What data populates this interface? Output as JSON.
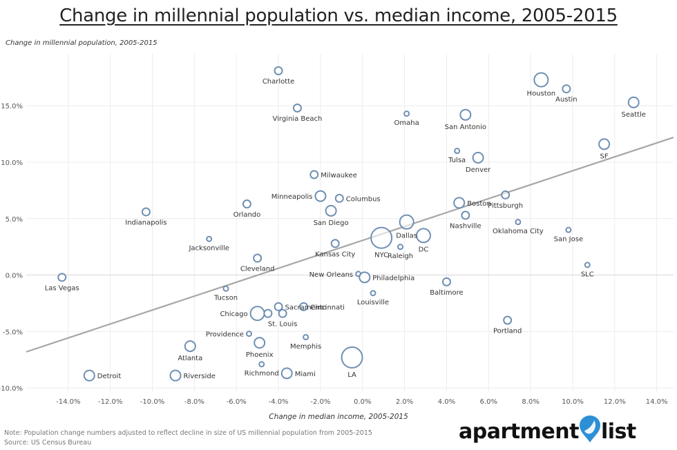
{
  "title": "Change in millennial population vs. median income, 2005-2015",
  "note_lines": [
    "Note: Population change numbers adjusted to reflect decline in size of US millennial population from 2005-2015",
    "Source: US Census Bureau"
  ],
  "logo": {
    "word_left": "apartment",
    "word_right": "list",
    "pin_color": "#2d8fd5",
    "icon": "map-pin-icon"
  },
  "colors": {
    "marker": "#6f8fb3",
    "trend": "#a6a6a6",
    "grid": "#ececec",
    "zero_line": "#d6d6d6"
  },
  "chart_data": {
    "type": "scatter",
    "xlabel": "Change in median income, 2005-2015",
    "ylabel": "Change in millennial population, 2005-2015",
    "xlim": [
      -16,
      14.8
    ],
    "ylim": [
      -10.3,
      19.6
    ],
    "x_ticks": [
      -14,
      -12,
      -10,
      -8,
      -6,
      -4,
      -2,
      0,
      2,
      4,
      6,
      8,
      10,
      12,
      14
    ],
    "x_tick_labels": [
      "-14.0%",
      "-12.0%",
      "-10.0%",
      "-8.0%",
      "-6.0%",
      "-4.0%",
      "-2.0%",
      "0.0%",
      "2.0%",
      "4.0%",
      "6.0%",
      "8.0%",
      "10.0%",
      "12.0%",
      "14.0%"
    ],
    "y_ticks": [
      -10,
      -5,
      0,
      5,
      10,
      15
    ],
    "y_tick_labels": [
      "-10.0%",
      "-5.0%",
      "0.0%",
      "5.0%",
      "10.0%",
      "15.0%"
    ],
    "grid": true,
    "trendline": {
      "x": [
        -16,
        14.8
      ],
      "y": [
        -6.8,
        12.2
      ]
    },
    "points": [
      {
        "label": "Charlotte",
        "x": -4.0,
        "y": 18.1,
        "size": "small",
        "label_pos": "below"
      },
      {
        "label": "Virginia Beach",
        "x": -3.1,
        "y": 14.8,
        "size": "small",
        "label_pos": "below"
      },
      {
        "label": "Omaha",
        "x": 2.1,
        "y": 14.3,
        "size": "xsmall",
        "label_pos": "below"
      },
      {
        "label": "San Antonio",
        "x": 4.9,
        "y": 14.2,
        "size": "medium",
        "label_pos": "below"
      },
      {
        "label": "Houston",
        "x": 8.5,
        "y": 17.3,
        "size": "large",
        "label_pos": "below"
      },
      {
        "label": "Austin",
        "x": 9.7,
        "y": 16.5,
        "size": "small",
        "label_pos": "below"
      },
      {
        "label": "Seattle",
        "x": 12.9,
        "y": 15.3,
        "size": "medium",
        "label_pos": "below"
      },
      {
        "label": "Tulsa",
        "x": 4.5,
        "y": 11.0,
        "size": "xsmall",
        "label_pos": "below"
      },
      {
        "label": "Denver",
        "x": 5.5,
        "y": 10.4,
        "size": "medium",
        "label_pos": "below"
      },
      {
        "label": "SF",
        "x": 11.5,
        "y": 11.6,
        "size": "medium",
        "label_pos": "below"
      },
      {
        "label": "Milwaukee",
        "x": -2.3,
        "y": 8.9,
        "size": "small",
        "label_pos": "right"
      },
      {
        "label": "Minneapolis",
        "x": -2.0,
        "y": 7.0,
        "size": "medium",
        "label_pos": "left"
      },
      {
        "label": "Columbus",
        "x": -1.1,
        "y": 6.8,
        "size": "small",
        "label_pos": "right"
      },
      {
        "label": "San Diego",
        "x": -1.5,
        "y": 5.7,
        "size": "medium",
        "label_pos": "below"
      },
      {
        "label": "Orlando",
        "x": -5.5,
        "y": 6.3,
        "size": "small",
        "label_pos": "below"
      },
      {
        "label": "Indianapolis",
        "x": -10.3,
        "y": 5.6,
        "size": "small",
        "label_pos": "below"
      },
      {
        "label": "Boston",
        "x": 4.6,
        "y": 6.4,
        "size": "medium",
        "label_pos": "right"
      },
      {
        "label": "Pittsburgh",
        "x": 6.8,
        "y": 7.1,
        "size": "small",
        "label_pos": "below"
      },
      {
        "label": "Nashville",
        "x": 4.9,
        "y": 5.3,
        "size": "small",
        "label_pos": "below"
      },
      {
        "label": "Oklahoma City",
        "x": 7.4,
        "y": 4.7,
        "size": "xsmall",
        "label_pos": "below"
      },
      {
        "label": "San Jose",
        "x": 9.8,
        "y": 4.0,
        "size": "xsmall",
        "label_pos": "below"
      },
      {
        "label": "Jacksonville",
        "x": -7.3,
        "y": 3.2,
        "size": "xsmall",
        "label_pos": "below"
      },
      {
        "label": "Dallas",
        "x": 2.1,
        "y": 4.7,
        "size": "large",
        "label_pos": "below"
      },
      {
        "label": "NYC",
        "x": 0.9,
        "y": 3.3,
        "size": "xlarge",
        "label_pos": "below"
      },
      {
        "label": "DC",
        "x": 2.9,
        "y": 3.5,
        "size": "large",
        "label_pos": "below"
      },
      {
        "label": "Raleigh",
        "x": 1.8,
        "y": 2.5,
        "size": "xsmall",
        "label_pos": "below"
      },
      {
        "label": "Kansas City",
        "x": -1.3,
        "y": 2.8,
        "size": "small",
        "label_pos": "below"
      },
      {
        "label": "Cleveland",
        "x": -5.0,
        "y": 1.5,
        "size": "small",
        "label_pos": "below"
      },
      {
        "label": "SLC",
        "x": 10.7,
        "y": 0.9,
        "size": "xsmall",
        "label_pos": "below"
      },
      {
        "label": "Las Vegas",
        "x": -14.3,
        "y": -0.2,
        "size": "small",
        "label_pos": "below"
      },
      {
        "label": "New Orleans",
        "x": -0.2,
        "y": 0.1,
        "size": "xsmall",
        "label_pos": "left"
      },
      {
        "label": "Philadelphia",
        "x": 0.1,
        "y": -0.2,
        "size": "medium",
        "label_pos": "right"
      },
      {
        "label": "Tucson",
        "x": -6.5,
        "y": -1.2,
        "size": "xsmall",
        "label_pos": "below"
      },
      {
        "label": "Louisville",
        "x": 0.5,
        "y": -1.6,
        "size": "xsmall",
        "label_pos": "below"
      },
      {
        "label": "Baltimore",
        "x": 4.0,
        "y": -0.6,
        "size": "small",
        "label_pos": "below"
      },
      {
        "label": "Sacramento",
        "x": -4.0,
        "y": -2.8,
        "size": "small",
        "label_pos": "right"
      },
      {
        "label": "Cincinnati",
        "x": -2.8,
        "y": -2.8,
        "size": "small",
        "label_pos": "right"
      },
      {
        "label": "Chicago",
        "x": -5.0,
        "y": -3.4,
        "size": "large",
        "label_pos": "left"
      },
      {
        "label": "St. Louis",
        "x": -3.8,
        "y": -3.4,
        "size": "small",
        "label_pos": "below"
      },
      {
        "label": "",
        "x": -4.5,
        "y": -3.4,
        "size": "small",
        "label_pos": "none"
      },
      {
        "label": "Portland",
        "x": 6.9,
        "y": -4.0,
        "size": "small",
        "label_pos": "below"
      },
      {
        "label": "Providence",
        "x": -5.4,
        "y": -5.2,
        "size": "xsmall",
        "label_pos": "left"
      },
      {
        "label": "Memphis",
        "x": -2.7,
        "y": -5.5,
        "size": "xsmall",
        "label_pos": "below"
      },
      {
        "label": "Phoenix",
        "x": -4.9,
        "y": -6.0,
        "size": "medium",
        "label_pos": "below"
      },
      {
        "label": "Atlanta",
        "x": -8.2,
        "y": -6.3,
        "size": "medium",
        "label_pos": "below"
      },
      {
        "label": "LA",
        "x": -0.5,
        "y": -7.3,
        "size": "xlarge",
        "label_pos": "below"
      },
      {
        "label": "Richmond",
        "x": -4.8,
        "y": -7.9,
        "size": "xsmall",
        "label_pos": "below"
      },
      {
        "label": "Miami",
        "x": -3.6,
        "y": -8.7,
        "size": "medium",
        "label_pos": "right"
      },
      {
        "label": "Detroit",
        "x": -13.0,
        "y": -8.9,
        "size": "medium",
        "label_pos": "right"
      },
      {
        "label": "Riverside",
        "x": -8.9,
        "y": -8.9,
        "size": "medium",
        "label_pos": "right"
      }
    ]
  }
}
